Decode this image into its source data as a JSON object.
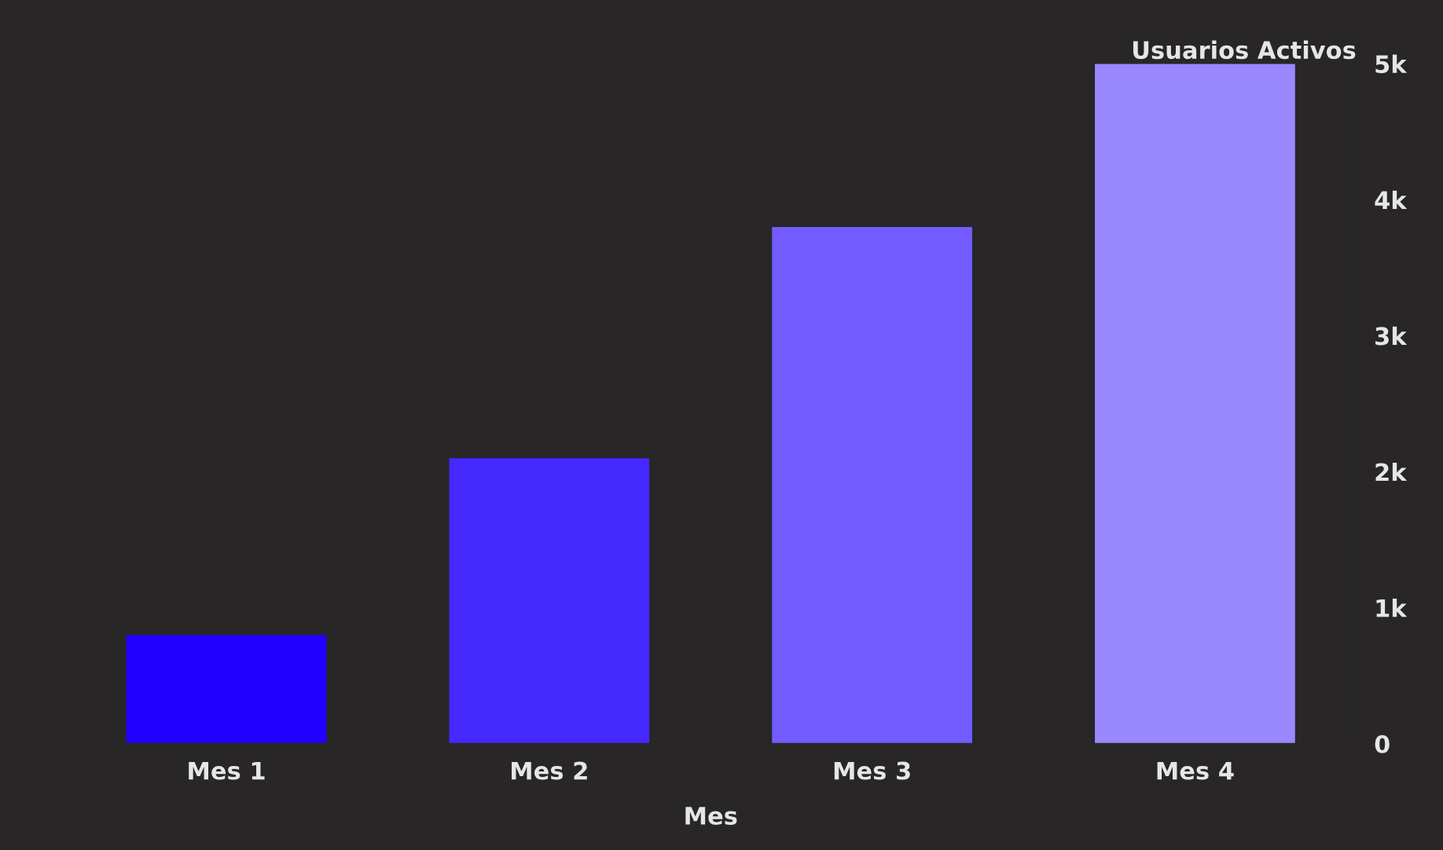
{
  "chart_data": {
    "type": "bar",
    "xlabel": "Mes",
    "ylabel": "Usuarios Activos",
    "categories": [
      "Mes 1",
      "Mes 2",
      "Mes 3",
      "Mes 4"
    ],
    "values": [
      800,
      2100,
      3800,
      5000
    ],
    "colors": [
      "#2200ff",
      "#4629ff",
      "#735cff",
      "#9a88ff"
    ],
    "ylim": [
      0,
      5000
    ],
    "yticks": [
      0,
      {
        "value": 1000,
        "label": "1k"
      },
      {
        "value": 2000,
        "label": "2k"
      },
      {
        "value": 3000,
        "label": "3k"
      },
      {
        "value": 4000,
        "label": "4k"
      },
      {
        "value": 5000,
        "label": "5k"
      }
    ],
    "grid": false,
    "legend": false
  }
}
